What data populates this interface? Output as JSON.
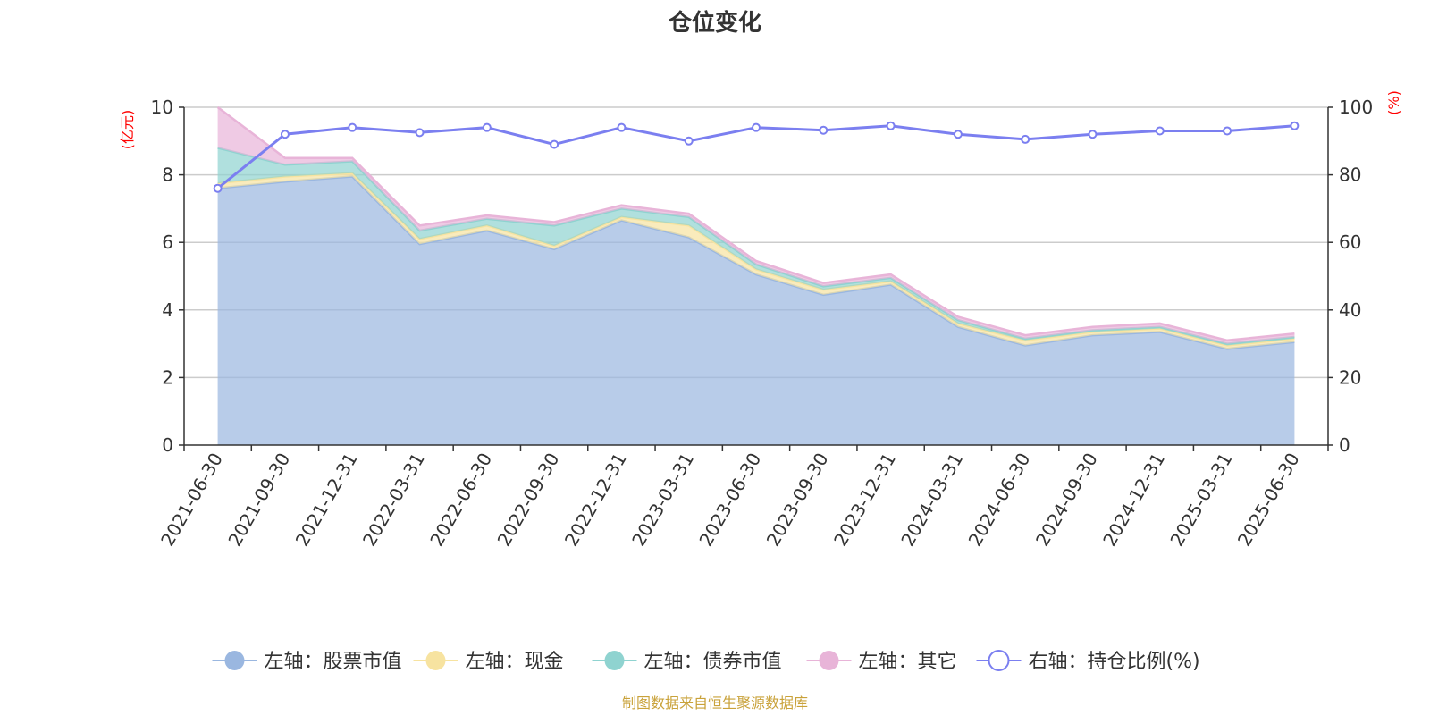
{
  "chart_data": {
    "type": "area",
    "title": "仓位变化",
    "left_axis_unit": "(亿元)",
    "right_axis_unit": "(%)",
    "ylim_left": [
      0,
      10
    ],
    "ylim_right": [
      0,
      100
    ],
    "yticks_left": [
      "0",
      "2",
      "4",
      "6",
      "8",
      "10"
    ],
    "yticks_right": [
      "0",
      "20",
      "40",
      "60",
      "80",
      "100"
    ],
    "categories": [
      "2021-06-30",
      "2021-09-30",
      "2021-12-31",
      "2022-03-31",
      "2022-06-30",
      "2022-09-30",
      "2022-12-31",
      "2023-03-31",
      "2023-06-30",
      "2023-09-30",
      "2023-12-31",
      "2024-03-31",
      "2024-06-30",
      "2024-09-30",
      "2024-12-31",
      "2025-03-31",
      "2025-06-30"
    ],
    "stacked": true,
    "grid": true,
    "legend_position": "bottom",
    "series": [
      {
        "name": "左轴：股票市值",
        "axis": "left",
        "kind": "area",
        "color": "#9ab7e0",
        "values": [
          7.6,
          7.8,
          7.95,
          5.95,
          6.35,
          5.8,
          6.65,
          6.15,
          5.05,
          4.45,
          4.75,
          3.5,
          2.95,
          3.25,
          3.35,
          2.85,
          3.05
        ]
      },
      {
        "name": "左轴：现金",
        "axis": "left",
        "kind": "area",
        "color": "#f7e3a0",
        "values": [
          0.15,
          0.15,
          0.1,
          0.15,
          0.15,
          0.1,
          0.1,
          0.35,
          0.15,
          0.15,
          0.1,
          0.1,
          0.15,
          0.1,
          0.1,
          0.1,
          0.1
        ]
      },
      {
        "name": "左轴：债券市值",
        "axis": "left",
        "kind": "area",
        "color": "#8fd3d0",
        "values": [
          1.05,
          0.35,
          0.35,
          0.25,
          0.2,
          0.6,
          0.25,
          0.25,
          0.15,
          0.1,
          0.1,
          0.1,
          0.05,
          0.05,
          0.05,
          0.05,
          0.05
        ]
      },
      {
        "name": "左轴：其它",
        "axis": "left",
        "kind": "area",
        "color": "#e8b4d8",
        "values": [
          1.2,
          0.2,
          0.1,
          0.15,
          0.1,
          0.1,
          0.1,
          0.1,
          0.1,
          0.1,
          0.1,
          0.1,
          0.1,
          0.1,
          0.1,
          0.1,
          0.1
        ]
      },
      {
        "name": "右轴：持仓比例(%)",
        "axis": "right",
        "kind": "line",
        "color": "#7b7ff0",
        "values": [
          76,
          92,
          94,
          92.5,
          94,
          89,
          94,
          90,
          94,
          93.2,
          94.5,
          92,
          90.5,
          92,
          93,
          93,
          94.5
        ]
      }
    ],
    "source": "制图数据来自恒生聚源数据库"
  }
}
